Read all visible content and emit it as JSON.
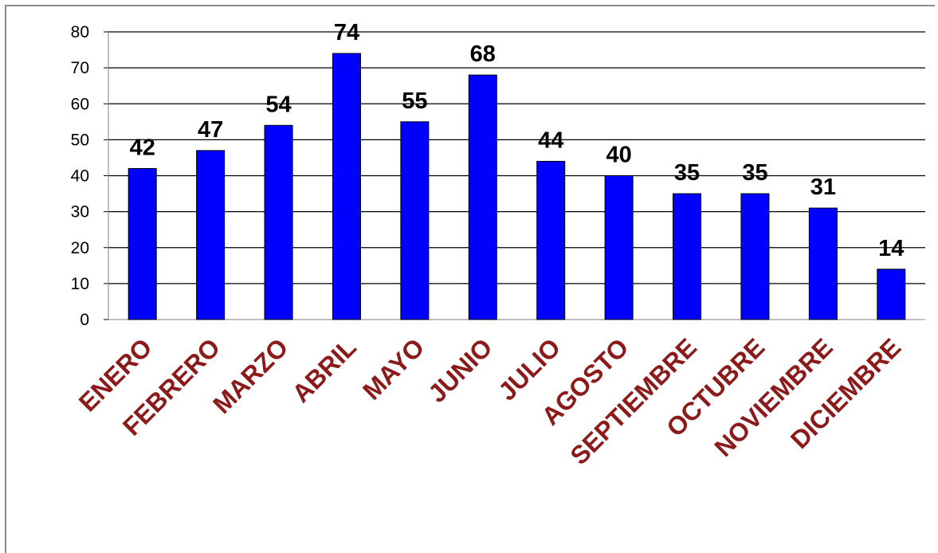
{
  "chart_data": {
    "type": "bar",
    "categories": [
      "ENERO",
      "FEBRERO",
      "MARZO",
      "ABRIL",
      "MAYO",
      "JUNIO",
      "JULIO",
      "AGOSTO",
      "SEPTIEMBRE",
      "OCTUBRE",
      "NOVIEMBRE",
      "DICIEMBRE"
    ],
    "values": [
      42,
      47,
      54,
      74,
      55,
      68,
      44,
      40,
      35,
      35,
      31,
      14
    ],
    "ylim": [
      0,
      80
    ],
    "yticks": [
      0,
      10,
      20,
      30,
      40,
      50,
      60,
      70,
      80
    ],
    "grid": true,
    "legend": "none",
    "bar_color": "#0000ff",
    "label_color": "#8b1a1a"
  }
}
